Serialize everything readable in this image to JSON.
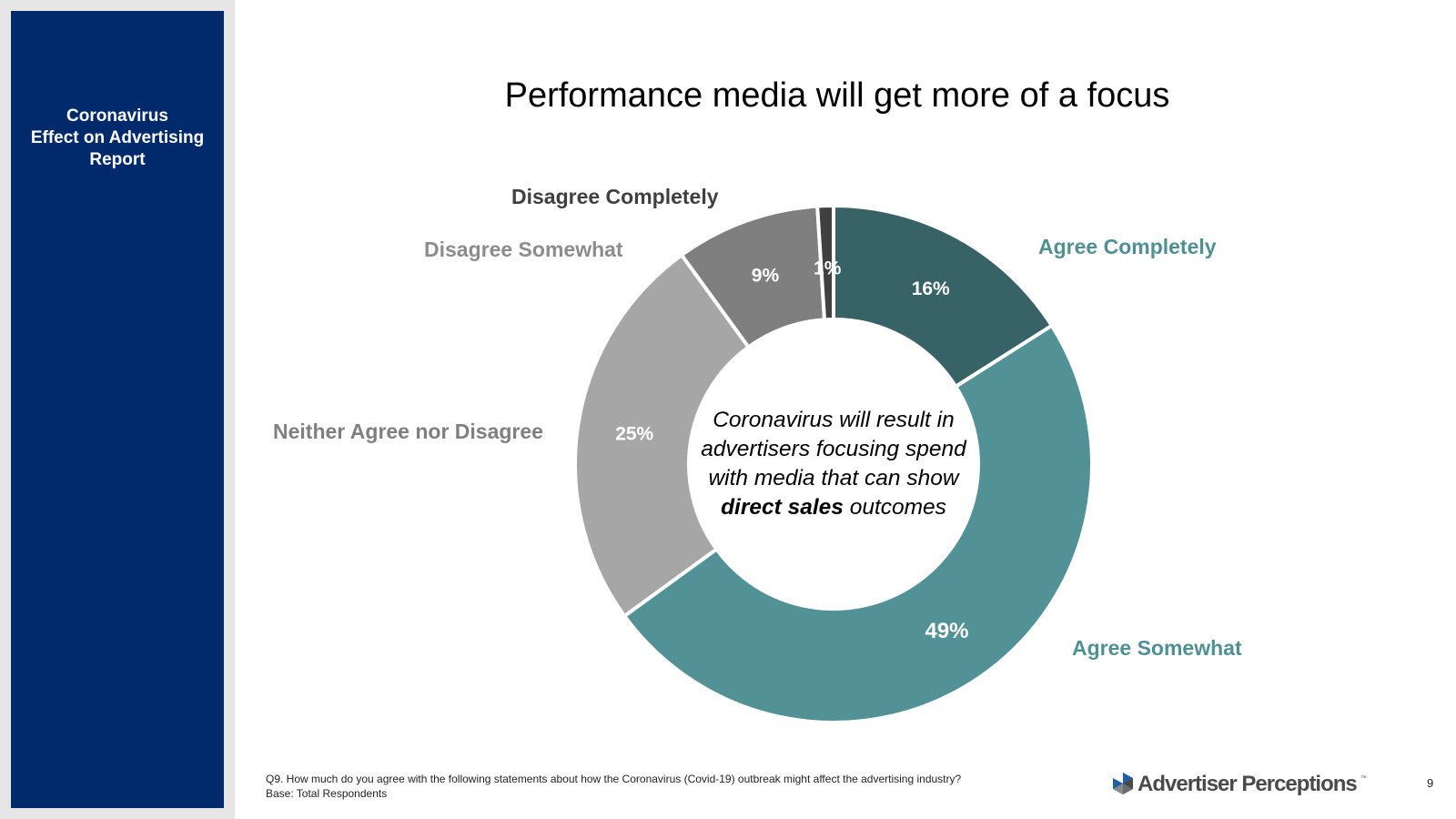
{
  "sidebar": {
    "title_lines": [
      "Coronavirus",
      "Effect on Advertising",
      "Report"
    ]
  },
  "title": "Performance media will get more of a focus",
  "chart_data": {
    "type": "pie",
    "donut": true,
    "title": "Performance media will get more of a focus",
    "center_text": {
      "before": "Coronavirus will result in advertisers focusing spend with media that can show ",
      "bold": "direct sales",
      "after": " outcomes"
    },
    "categories": [
      "Agree Completely",
      "Agree Somewhat",
      "Neither Agree nor Disagree",
      "Disagree Somewhat",
      "Disagree Completely"
    ],
    "values": [
      16,
      49,
      25,
      9,
      1
    ],
    "value_labels": [
      "16%",
      "49%",
      "25%",
      "9%",
      "1%"
    ],
    "colors": [
      "#376266",
      "#529196",
      "#a6a6a6",
      "#7f7f7f",
      "#404040"
    ],
    "label_colors": [
      "#4f9094",
      "#4f9094",
      "#7f7f7f",
      "#8c8c8c",
      "#404040"
    ],
    "start": "top",
    "direction": "clockwise"
  },
  "footnote": {
    "question": "Q9. How much do you agree with the following statements about how the Coronavirus (Covid-19) outbreak might affect the advertising industry?",
    "base": "Base: Total Respondents"
  },
  "logo": {
    "text": "Advertiser Perceptions",
    "tm": "™"
  },
  "page_number": "9"
}
